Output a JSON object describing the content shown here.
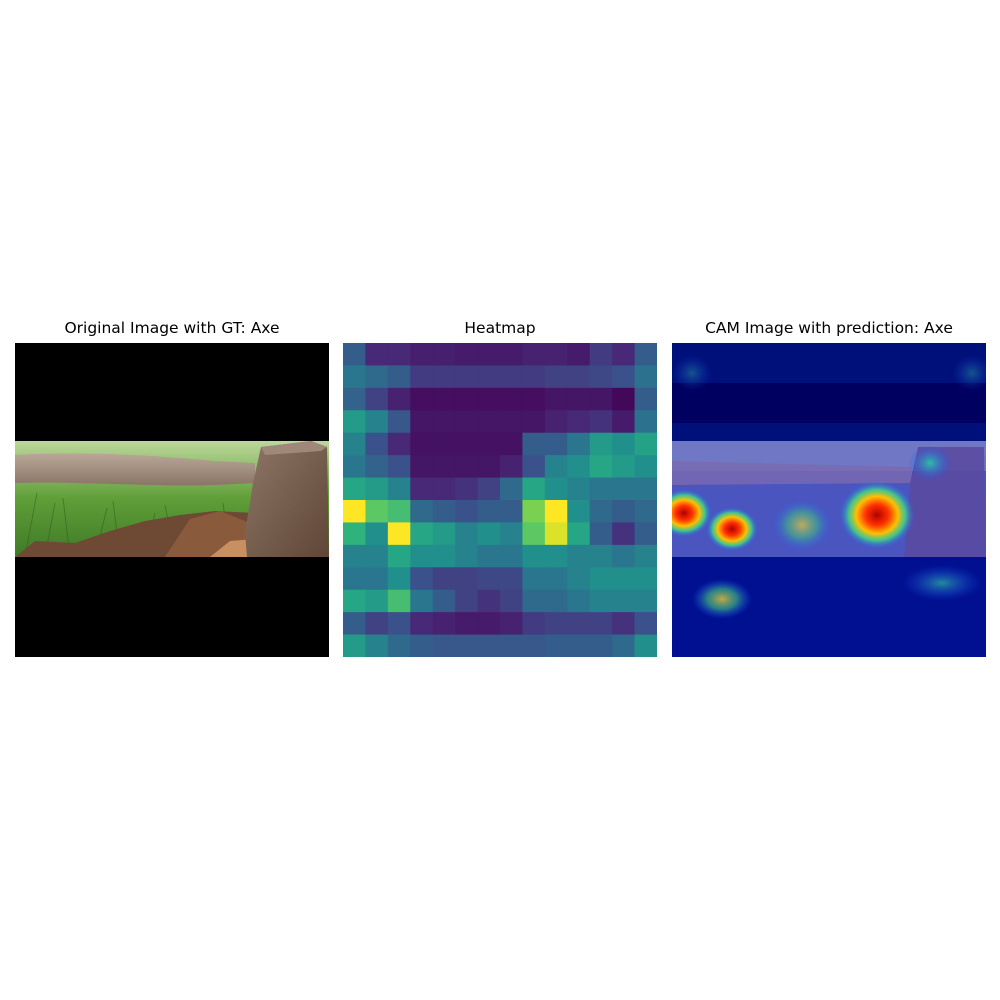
{
  "panels": [
    {
      "title": "Original Image with GT: Axe",
      "image": "axe-photo"
    },
    {
      "title": "Heatmap",
      "image": "viridis-heatmap"
    },
    {
      "title": "CAM Image with prediction: Axe",
      "image": "cam-overlay"
    }
  ],
  "heatmap": {
    "colormap": "viridis",
    "rows": 14,
    "cols": 14,
    "values": [
      [
        0.3,
        0.12,
        0.12,
        0.09,
        0.09,
        0.08,
        0.08,
        0.08,
        0.1,
        0.1,
        0.08,
        0.18,
        0.12,
        0.3
      ],
      [
        0.4,
        0.35,
        0.3,
        0.18,
        0.18,
        0.18,
        0.18,
        0.18,
        0.18,
        0.2,
        0.2,
        0.22,
        0.25,
        0.38
      ],
      [
        0.32,
        0.2,
        0.1,
        0.04,
        0.04,
        0.04,
        0.04,
        0.04,
        0.04,
        0.06,
        0.06,
        0.06,
        0.02,
        0.3
      ],
      [
        0.55,
        0.45,
        0.28,
        0.06,
        0.06,
        0.06,
        0.06,
        0.06,
        0.06,
        0.1,
        0.12,
        0.15,
        0.08,
        0.38
      ],
      [
        0.45,
        0.25,
        0.12,
        0.05,
        0.05,
        0.05,
        0.05,
        0.05,
        0.3,
        0.3,
        0.4,
        0.55,
        0.5,
        0.58
      ],
      [
        0.4,
        0.32,
        0.25,
        0.06,
        0.06,
        0.06,
        0.06,
        0.1,
        0.25,
        0.45,
        0.5,
        0.6,
        0.55,
        0.5
      ],
      [
        0.6,
        0.55,
        0.45,
        0.12,
        0.12,
        0.15,
        0.2,
        0.35,
        0.6,
        0.5,
        0.45,
        0.4,
        0.4,
        0.4
      ],
      [
        1.0,
        0.75,
        0.7,
        0.35,
        0.3,
        0.25,
        0.3,
        0.3,
        0.8,
        1.0,
        0.5,
        0.35,
        0.3,
        0.35
      ],
      [
        0.65,
        0.5,
        1.0,
        0.6,
        0.55,
        0.45,
        0.5,
        0.45,
        0.75,
        0.95,
        0.6,
        0.3,
        0.15,
        0.3
      ],
      [
        0.45,
        0.45,
        0.6,
        0.5,
        0.5,
        0.45,
        0.4,
        0.4,
        0.5,
        0.5,
        0.45,
        0.45,
        0.4,
        0.45
      ],
      [
        0.4,
        0.4,
        0.5,
        0.25,
        0.2,
        0.2,
        0.22,
        0.22,
        0.4,
        0.4,
        0.45,
        0.5,
        0.5,
        0.5
      ],
      [
        0.6,
        0.55,
        0.7,
        0.4,
        0.3,
        0.2,
        0.15,
        0.2,
        0.35,
        0.35,
        0.4,
        0.45,
        0.45,
        0.45
      ],
      [
        0.3,
        0.2,
        0.25,
        0.12,
        0.1,
        0.08,
        0.08,
        0.1,
        0.18,
        0.2,
        0.2,
        0.2,
        0.15,
        0.25
      ],
      [
        0.55,
        0.45,
        0.35,
        0.3,
        0.28,
        0.28,
        0.28,
        0.28,
        0.28,
        0.3,
        0.3,
        0.3,
        0.35,
        0.5
      ]
    ]
  }
}
